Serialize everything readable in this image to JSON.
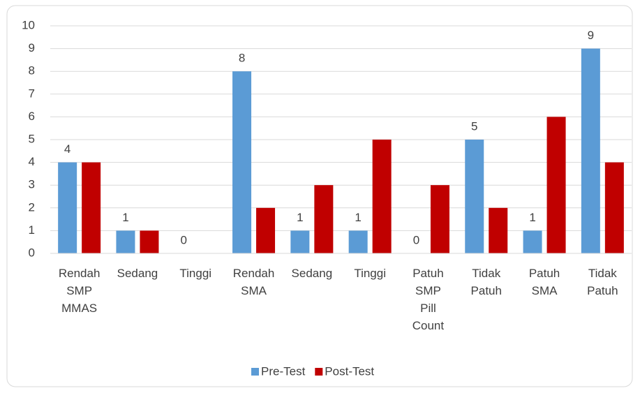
{
  "chart_data": {
    "type": "bar",
    "categories": [
      "Rendah SMP MMAS",
      "Sedang",
      "Tinggi",
      "Rendah SMA",
      "Sedang",
      "Tinggi",
      "Patuh SMP Pill Count",
      "Tidak Patuh",
      "Patuh SMA",
      "Tidak Patuh"
    ],
    "series": [
      {
        "name": "Pre-Test",
        "color": "#5b9bd5",
        "values": [
          4,
          1,
          0,
          8,
          1,
          1,
          0,
          5,
          1,
          9
        ],
        "data_labels": true
      },
      {
        "name": "Post-Test",
        "color": "#c00000",
        "values": [
          4,
          1,
          0,
          2,
          3,
          5,
          3,
          2,
          6,
          4
        ],
        "data_labels": false
      }
    ],
    "ylim": [
      0,
      10
    ],
    "yticks": [
      0,
      1,
      2,
      3,
      4,
      5,
      6,
      7,
      8,
      9,
      10
    ],
    "grid": true,
    "legend": "bottom"
  }
}
